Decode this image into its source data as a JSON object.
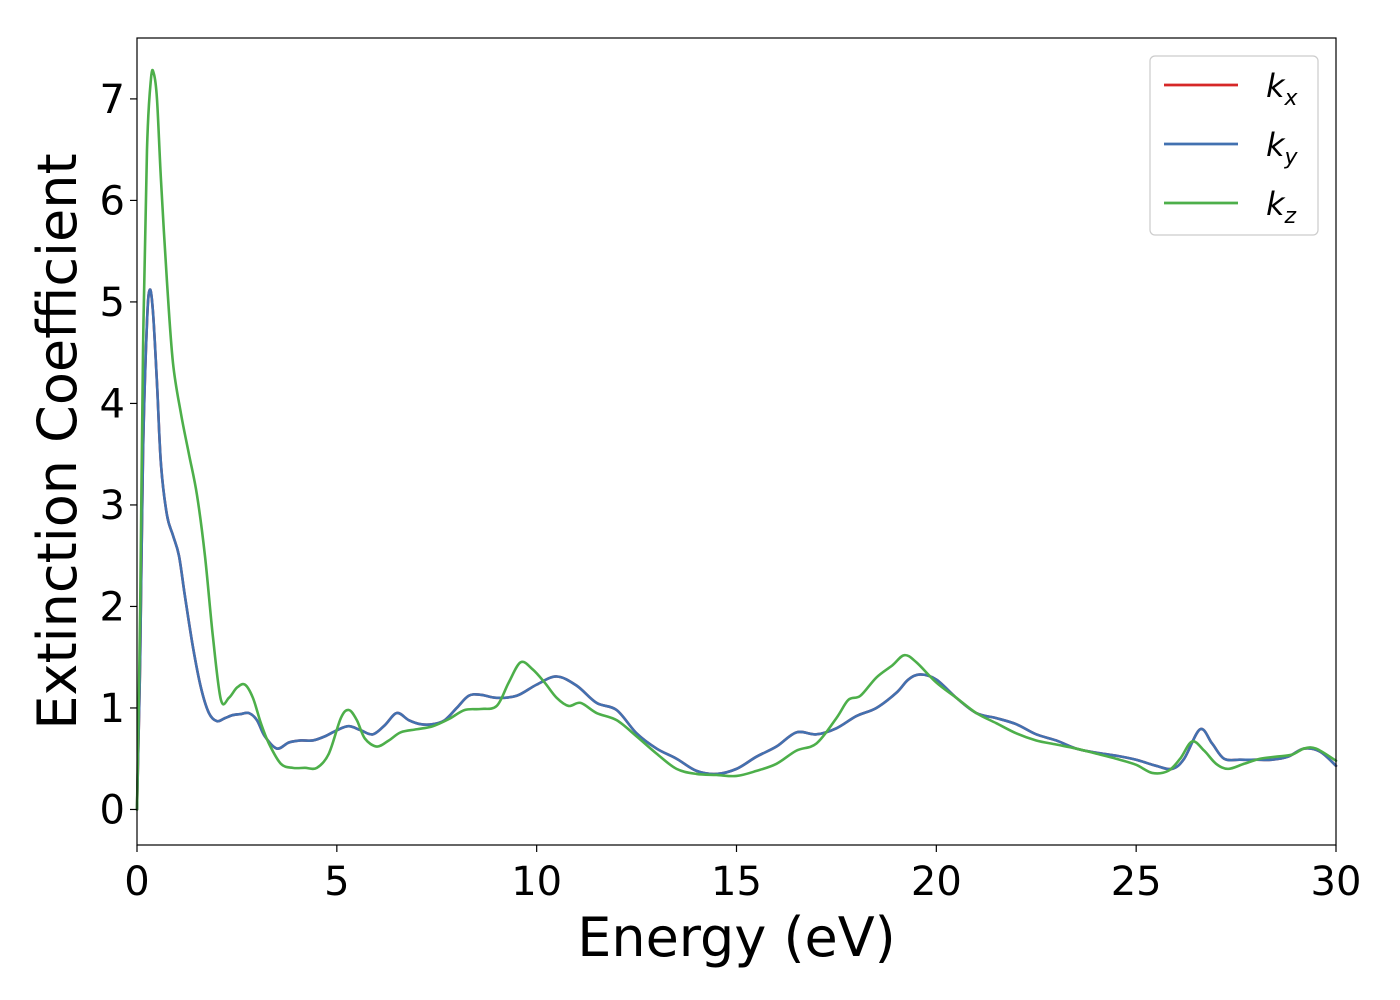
{
  "chart_data": {
    "type": "line",
    "xlabel": "Energy (eV)",
    "ylabel": "Extinction Coefficient",
    "xlim": [
      0,
      30
    ],
    "ylim": [
      -0.35,
      7.6
    ],
    "xticks": [
      "0",
      "5",
      "10",
      "15",
      "20",
      "25",
      "30"
    ],
    "yticks": [
      "0",
      "1",
      "2",
      "3",
      "4",
      "5",
      "6",
      "7"
    ],
    "grid": false,
    "legend_position": "top-right",
    "series": [
      {
        "name": "k_x",
        "label_base": "k",
        "label_sub": "x",
        "color": "#d62728",
        "x": [
          0,
          0.08,
          0.15,
          0.25,
          0.32,
          0.4,
          0.5,
          0.6,
          0.75,
          0.9,
          1.05,
          1.2,
          1.4,
          1.6,
          1.8,
          2.0,
          2.2,
          2.4,
          2.6,
          2.8,
          3.0,
          3.2,
          3.5,
          3.8,
          4.1,
          4.4,
          4.7,
          5.0,
          5.3,
          5.6,
          5.9,
          6.2,
          6.5,
          6.8,
          7.1,
          7.4,
          7.7,
          8.0,
          8.3,
          8.6,
          9.0,
          9.5,
          10.0,
          10.5,
          11.0,
          11.5,
          12.0,
          12.5,
          13.0,
          13.5,
          14.0,
          14.5,
          15.0,
          15.5,
          16.0,
          16.5,
          17.0,
          17.5,
          18.0,
          18.5,
          19.0,
          19.3,
          19.6,
          20.0,
          20.5,
          21.0,
          21.5,
          22.0,
          22.5,
          23.0,
          23.5,
          24.0,
          24.5,
          25.0,
          25.5,
          25.9,
          26.2,
          26.6,
          26.9,
          27.2,
          27.6,
          28.0,
          28.4,
          28.8,
          29.2,
          29.6,
          30.0
        ],
        "values": [
          0,
          1.5,
          3.5,
          4.8,
          5.12,
          4.9,
          4.2,
          3.4,
          2.9,
          2.7,
          2.5,
          2.1,
          1.6,
          1.2,
          0.95,
          0.87,
          0.9,
          0.93,
          0.94,
          0.95,
          0.88,
          0.72,
          0.6,
          0.66,
          0.68,
          0.68,
          0.72,
          0.78,
          0.82,
          0.78,
          0.74,
          0.83,
          0.95,
          0.88,
          0.84,
          0.84,
          0.88,
          1.0,
          1.12,
          1.13,
          1.1,
          1.12,
          1.23,
          1.31,
          1.22,
          1.05,
          0.98,
          0.75,
          0.6,
          0.5,
          0.38,
          0.35,
          0.4,
          0.52,
          0.62,
          0.76,
          0.74,
          0.8,
          0.92,
          1.0,
          1.15,
          1.28,
          1.33,
          1.28,
          1.1,
          0.95,
          0.9,
          0.84,
          0.74,
          0.68,
          0.6,
          0.56,
          0.53,
          0.49,
          0.43,
          0.4,
          0.5,
          0.79,
          0.65,
          0.5,
          0.49,
          0.49,
          0.49,
          0.52,
          0.6,
          0.57,
          0.43
        ]
      },
      {
        "name": "k_y",
        "label_base": "k",
        "label_sub": "y",
        "color": "#4271b0",
        "x": [
          0,
          0.08,
          0.15,
          0.25,
          0.32,
          0.4,
          0.5,
          0.6,
          0.75,
          0.9,
          1.05,
          1.2,
          1.4,
          1.6,
          1.8,
          2.0,
          2.2,
          2.4,
          2.6,
          2.8,
          3.0,
          3.2,
          3.5,
          3.8,
          4.1,
          4.4,
          4.7,
          5.0,
          5.3,
          5.6,
          5.9,
          6.2,
          6.5,
          6.8,
          7.1,
          7.4,
          7.7,
          8.0,
          8.3,
          8.6,
          9.0,
          9.5,
          10.0,
          10.5,
          11.0,
          11.5,
          12.0,
          12.5,
          13.0,
          13.5,
          14.0,
          14.5,
          15.0,
          15.5,
          16.0,
          16.5,
          17.0,
          17.5,
          18.0,
          18.5,
          19.0,
          19.3,
          19.6,
          20.0,
          20.5,
          21.0,
          21.5,
          22.0,
          22.5,
          23.0,
          23.5,
          24.0,
          24.5,
          25.0,
          25.5,
          25.9,
          26.2,
          26.6,
          26.9,
          27.2,
          27.6,
          28.0,
          28.4,
          28.8,
          29.2,
          29.6,
          30.0
        ],
        "values": [
          0,
          1.5,
          3.5,
          4.8,
          5.12,
          4.9,
          4.2,
          3.4,
          2.9,
          2.7,
          2.5,
          2.1,
          1.6,
          1.2,
          0.95,
          0.87,
          0.9,
          0.93,
          0.94,
          0.95,
          0.88,
          0.72,
          0.6,
          0.66,
          0.68,
          0.68,
          0.72,
          0.78,
          0.82,
          0.78,
          0.74,
          0.83,
          0.95,
          0.88,
          0.84,
          0.84,
          0.88,
          1.0,
          1.12,
          1.13,
          1.1,
          1.12,
          1.23,
          1.31,
          1.22,
          1.05,
          0.98,
          0.75,
          0.6,
          0.5,
          0.38,
          0.35,
          0.4,
          0.52,
          0.62,
          0.76,
          0.74,
          0.8,
          0.92,
          1.0,
          1.15,
          1.28,
          1.33,
          1.28,
          1.1,
          0.95,
          0.9,
          0.84,
          0.74,
          0.68,
          0.6,
          0.56,
          0.53,
          0.49,
          0.43,
          0.4,
          0.5,
          0.79,
          0.65,
          0.5,
          0.49,
          0.49,
          0.49,
          0.52,
          0.6,
          0.57,
          0.43
        ]
      },
      {
        "name": "k_z",
        "label_base": "k",
        "label_sub": "z",
        "color": "#4daf4a",
        "x": [
          0,
          0.08,
          0.15,
          0.25,
          0.35,
          0.42,
          0.5,
          0.6,
          0.75,
          0.9,
          1.1,
          1.3,
          1.5,
          1.7,
          1.9,
          2.1,
          2.3,
          2.5,
          2.7,
          2.9,
          3.1,
          3.3,
          3.6,
          3.9,
          4.2,
          4.5,
          4.8,
          5.1,
          5.3,
          5.5,
          5.7,
          6.0,
          6.3,
          6.6,
          7.0,
          7.4,
          7.8,
          8.2,
          8.6,
          9.0,
          9.3,
          9.6,
          9.9,
          10.2,
          10.5,
          10.8,
          11.1,
          11.5,
          12.0,
          12.5,
          13.0,
          13.5,
          14.0,
          14.5,
          15.0,
          15.5,
          16.0,
          16.5,
          17.0,
          17.5,
          17.8,
          18.1,
          18.5,
          18.9,
          19.2,
          19.5,
          20.0,
          20.5,
          21.0,
          21.5,
          22.0,
          22.5,
          23.0,
          23.5,
          24.0,
          24.5,
          25.0,
          25.4,
          25.8,
          26.1,
          26.4,
          26.7,
          27.0,
          27.3,
          27.7,
          28.1,
          28.5,
          28.9,
          29.2,
          29.5,
          30.0
        ],
        "values": [
          0,
          2.0,
          4.5,
          6.5,
          7.2,
          7.25,
          7.0,
          6.2,
          5.2,
          4.4,
          3.9,
          3.5,
          3.1,
          2.5,
          1.7,
          1.08,
          1.1,
          1.2,
          1.23,
          1.1,
          0.85,
          0.65,
          0.45,
          0.41,
          0.41,
          0.41,
          0.55,
          0.9,
          0.98,
          0.88,
          0.7,
          0.62,
          0.68,
          0.76,
          0.79,
          0.82,
          0.89,
          0.98,
          0.99,
          1.02,
          1.25,
          1.45,
          1.38,
          1.25,
          1.1,
          1.02,
          1.05,
          0.95,
          0.88,
          0.72,
          0.55,
          0.4,
          0.35,
          0.34,
          0.33,
          0.38,
          0.45,
          0.58,
          0.65,
          0.9,
          1.08,
          1.12,
          1.3,
          1.42,
          1.52,
          1.45,
          1.25,
          1.1,
          0.95,
          0.85,
          0.75,
          0.68,
          0.64,
          0.6,
          0.55,
          0.5,
          0.44,
          0.36,
          0.38,
          0.5,
          0.67,
          0.58,
          0.45,
          0.4,
          0.45,
          0.5,
          0.52,
          0.54,
          0.6,
          0.6,
          0.48
        ]
      }
    ]
  }
}
